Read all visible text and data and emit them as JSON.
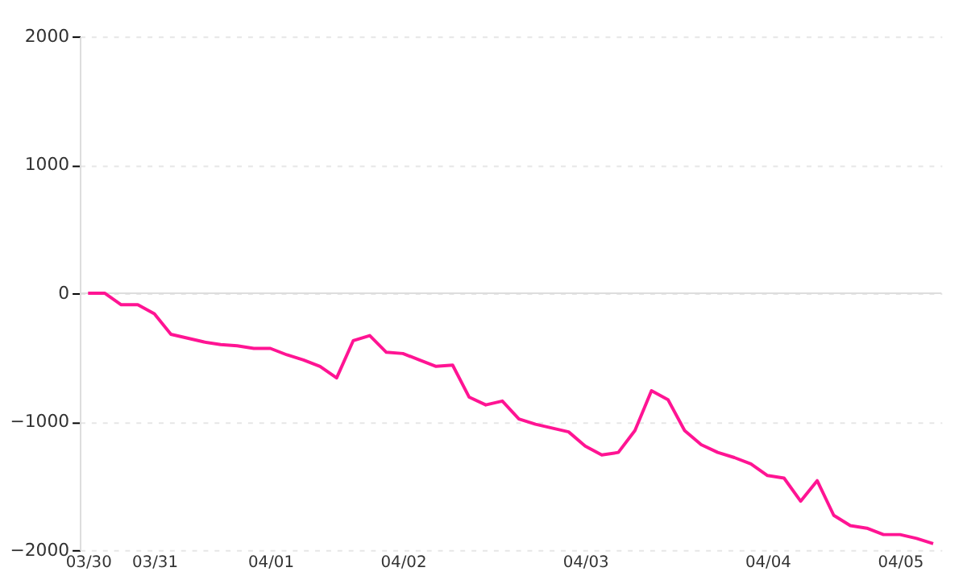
{
  "chart_data": {
    "type": "line",
    "categories": [
      "03/30",
      null,
      null,
      null,
      "03/31",
      null,
      null,
      null,
      null,
      null,
      null,
      "04/01",
      null,
      null,
      null,
      null,
      null,
      null,
      null,
      "04/02",
      null,
      null,
      null,
      null,
      null,
      null,
      null,
      null,
      null,
      null,
      "04/03",
      null,
      null,
      null,
      null,
      null,
      null,
      null,
      null,
      null,
      null,
      "04/04",
      null,
      null,
      null,
      null,
      null,
      null,
      null,
      "04/05",
      null,
      null
    ],
    "series": [
      {
        "color": "#ff1493",
        "values": [
          0,
          0,
          -90,
          -90,
          -160,
          -320,
          -350,
          -380,
          -400,
          -410,
          -430,
          -430,
          -480,
          -520,
          -570,
          -660,
          -370,
          -330,
          -460,
          -470,
          -520,
          -570,
          -560,
          -810,
          -870,
          -840,
          -980,
          -1020,
          -1050,
          -1080,
          -1190,
          -1260,
          -1240,
          -1070,
          -760,
          -830,
          -1070,
          -1180,
          -1240,
          -1280,
          -1330,
          -1420,
          -1440,
          -1620,
          -1460,
          -1730,
          -1810,
          -1830,
          -1880,
          -1880,
          -1910,
          -1950
        ]
      }
    ],
    "ylim": [
      -2000,
      2000
    ],
    "yticks": [
      -2000,
      -1000,
      0,
      1000,
      2000
    ],
    "grid": "y",
    "marker": "none",
    "line_style": "solid",
    "ref_lines": [
      {
        "axis": "y",
        "value": 0,
        "color": "#dddddd"
      }
    ]
  }
}
